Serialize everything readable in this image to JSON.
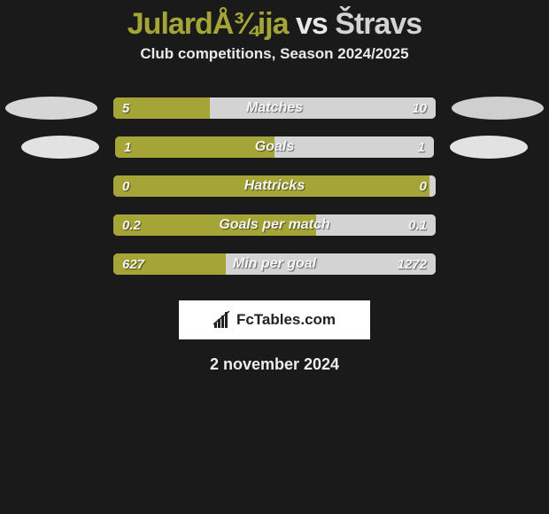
{
  "colors": {
    "player1": "#a4a536",
    "player2": "#d3d3d3",
    "oval_left1": "#d6d6d6",
    "oval_left2": "#e2e2e2",
    "oval_right1": "#cfcfcf",
    "oval_right2": "#e2e2e2",
    "bg": "#1a1a1a"
  },
  "title": {
    "player1": "JulardÅ¾ija",
    "vs": "vs",
    "player2": "Štravs"
  },
  "subtitle": "Club competitions, Season 2024/2025",
  "rows": [
    {
      "label": "Matches",
      "left": "5",
      "right": "10",
      "left_pct": 30,
      "right_pct": 70,
      "show_ovals": true
    },
    {
      "label": "Goals",
      "left": "1",
      "right": "1",
      "left_pct": 50,
      "right_pct": 50,
      "show_ovals": true
    },
    {
      "label": "Hattricks",
      "left": "0",
      "right": "0",
      "left_pct": 98,
      "right_pct": 2,
      "show_ovals": false
    },
    {
      "label": "Goals per match",
      "left": "0.2",
      "right": "0.1",
      "left_pct": 63,
      "right_pct": 37,
      "show_ovals": false
    },
    {
      "label": "Min per goal",
      "left": "627",
      "right": "1272",
      "left_pct": 35,
      "right_pct": 65,
      "show_ovals": false
    }
  ],
  "row_gap": 22,
  "brand": "FcTables.com",
  "date": "2 november 2024"
}
